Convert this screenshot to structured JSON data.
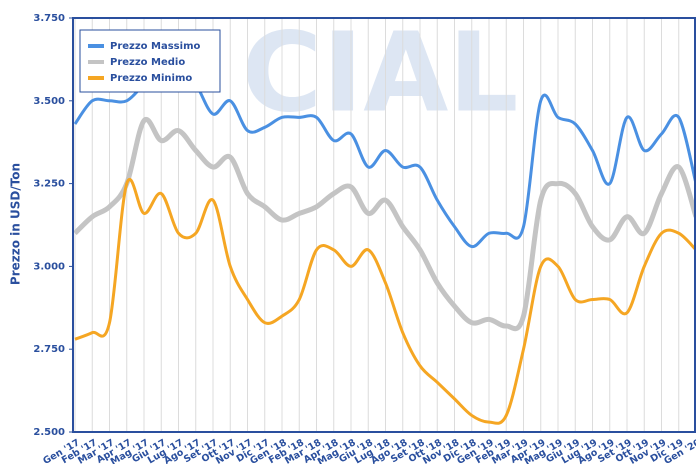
{
  "chart_data": {
    "type": "line",
    "watermark": "CIAL",
    "y_label": "Prezzo in USD/Ton",
    "categories": [
      "Gen '17",
      "Feb '17",
      "Mar '17",
      "Apr '17",
      "Mag '17",
      "Giu '17",
      "Lug '17",
      "Ago '17",
      "Set '17",
      "Ott '17",
      "Nov '17",
      "Dic '17",
      "Gen '18",
      "Feb '18",
      "Mar '18",
      "Apr '18",
      "Mag '18",
      "Giu '18",
      "Lug '18",
      "Ago '18",
      "Set '18",
      "Ott '18",
      "Nov '18",
      "Dic '18",
      "Gen '19",
      "Feb '19",
      "Mar '19",
      "Apr '19",
      "Mag '19",
      "Giu '19",
      "Lug '19",
      "Ago '19",
      "Set '19",
      "Ott '19",
      "Nov '19",
      "Dic '19",
      "Gen '20"
    ],
    "series": [
      {
        "name": "Prezzo Massimo",
        "color": "#4a90e2",
        "values": [
          3.43,
          3.5,
          3.5,
          3.5,
          3.55,
          3.6,
          3.6,
          3.55,
          3.46,
          3.5,
          3.41,
          3.42,
          3.45,
          3.45,
          3.45,
          3.38,
          3.4,
          3.3,
          3.35,
          3.3,
          3.3,
          3.2,
          3.12,
          3.06,
          3.1,
          3.1,
          3.12,
          3.5,
          3.45,
          3.43,
          3.35,
          3.25,
          3.45,
          3.35,
          3.4,
          3.45,
          3.25
        ]
      },
      {
        "name": "Prezzo Medio",
        "color": "#c4c4c4",
        "values": [
          3.1,
          3.15,
          3.18,
          3.25,
          3.44,
          3.38,
          3.41,
          3.35,
          3.3,
          3.33,
          3.22,
          3.18,
          3.14,
          3.16,
          3.18,
          3.22,
          3.24,
          3.16,
          3.2,
          3.12,
          3.05,
          2.95,
          2.88,
          2.83,
          2.84,
          2.82,
          2.85,
          3.2,
          3.25,
          3.22,
          3.12,
          3.08,
          3.15,
          3.1,
          3.22,
          3.3,
          3.15
        ]
      },
      {
        "name": "Prezzo Minimo",
        "color": "#f5a623",
        "values": [
          2.78,
          2.8,
          2.83,
          3.25,
          3.16,
          3.22,
          3.1,
          3.1,
          3.2,
          3.0,
          2.9,
          2.83,
          2.85,
          2.9,
          3.05,
          3.05,
          3.0,
          3.05,
          2.95,
          2.8,
          2.7,
          2.65,
          2.6,
          2.55,
          2.53,
          2.55,
          2.75,
          3.0,
          3.0,
          2.9,
          2.9,
          2.9,
          2.86,
          3.0,
          3.1,
          3.1,
          3.05
        ]
      }
    ],
    "ylim": [
      2.5,
      3.75
    ],
    "yticks": [
      {
        "value": 2.5,
        "label": "2.500"
      },
      {
        "value": 2.75,
        "label": "2.750"
      },
      {
        "value": 3.0,
        "label": "3.000"
      },
      {
        "value": 3.25,
        "label": "3.250"
      },
      {
        "value": 3.5,
        "label": "3.500"
      },
      {
        "value": 3.75,
        "label": "3.750"
      }
    ],
    "grid": "x",
    "legend": "upper left"
  }
}
